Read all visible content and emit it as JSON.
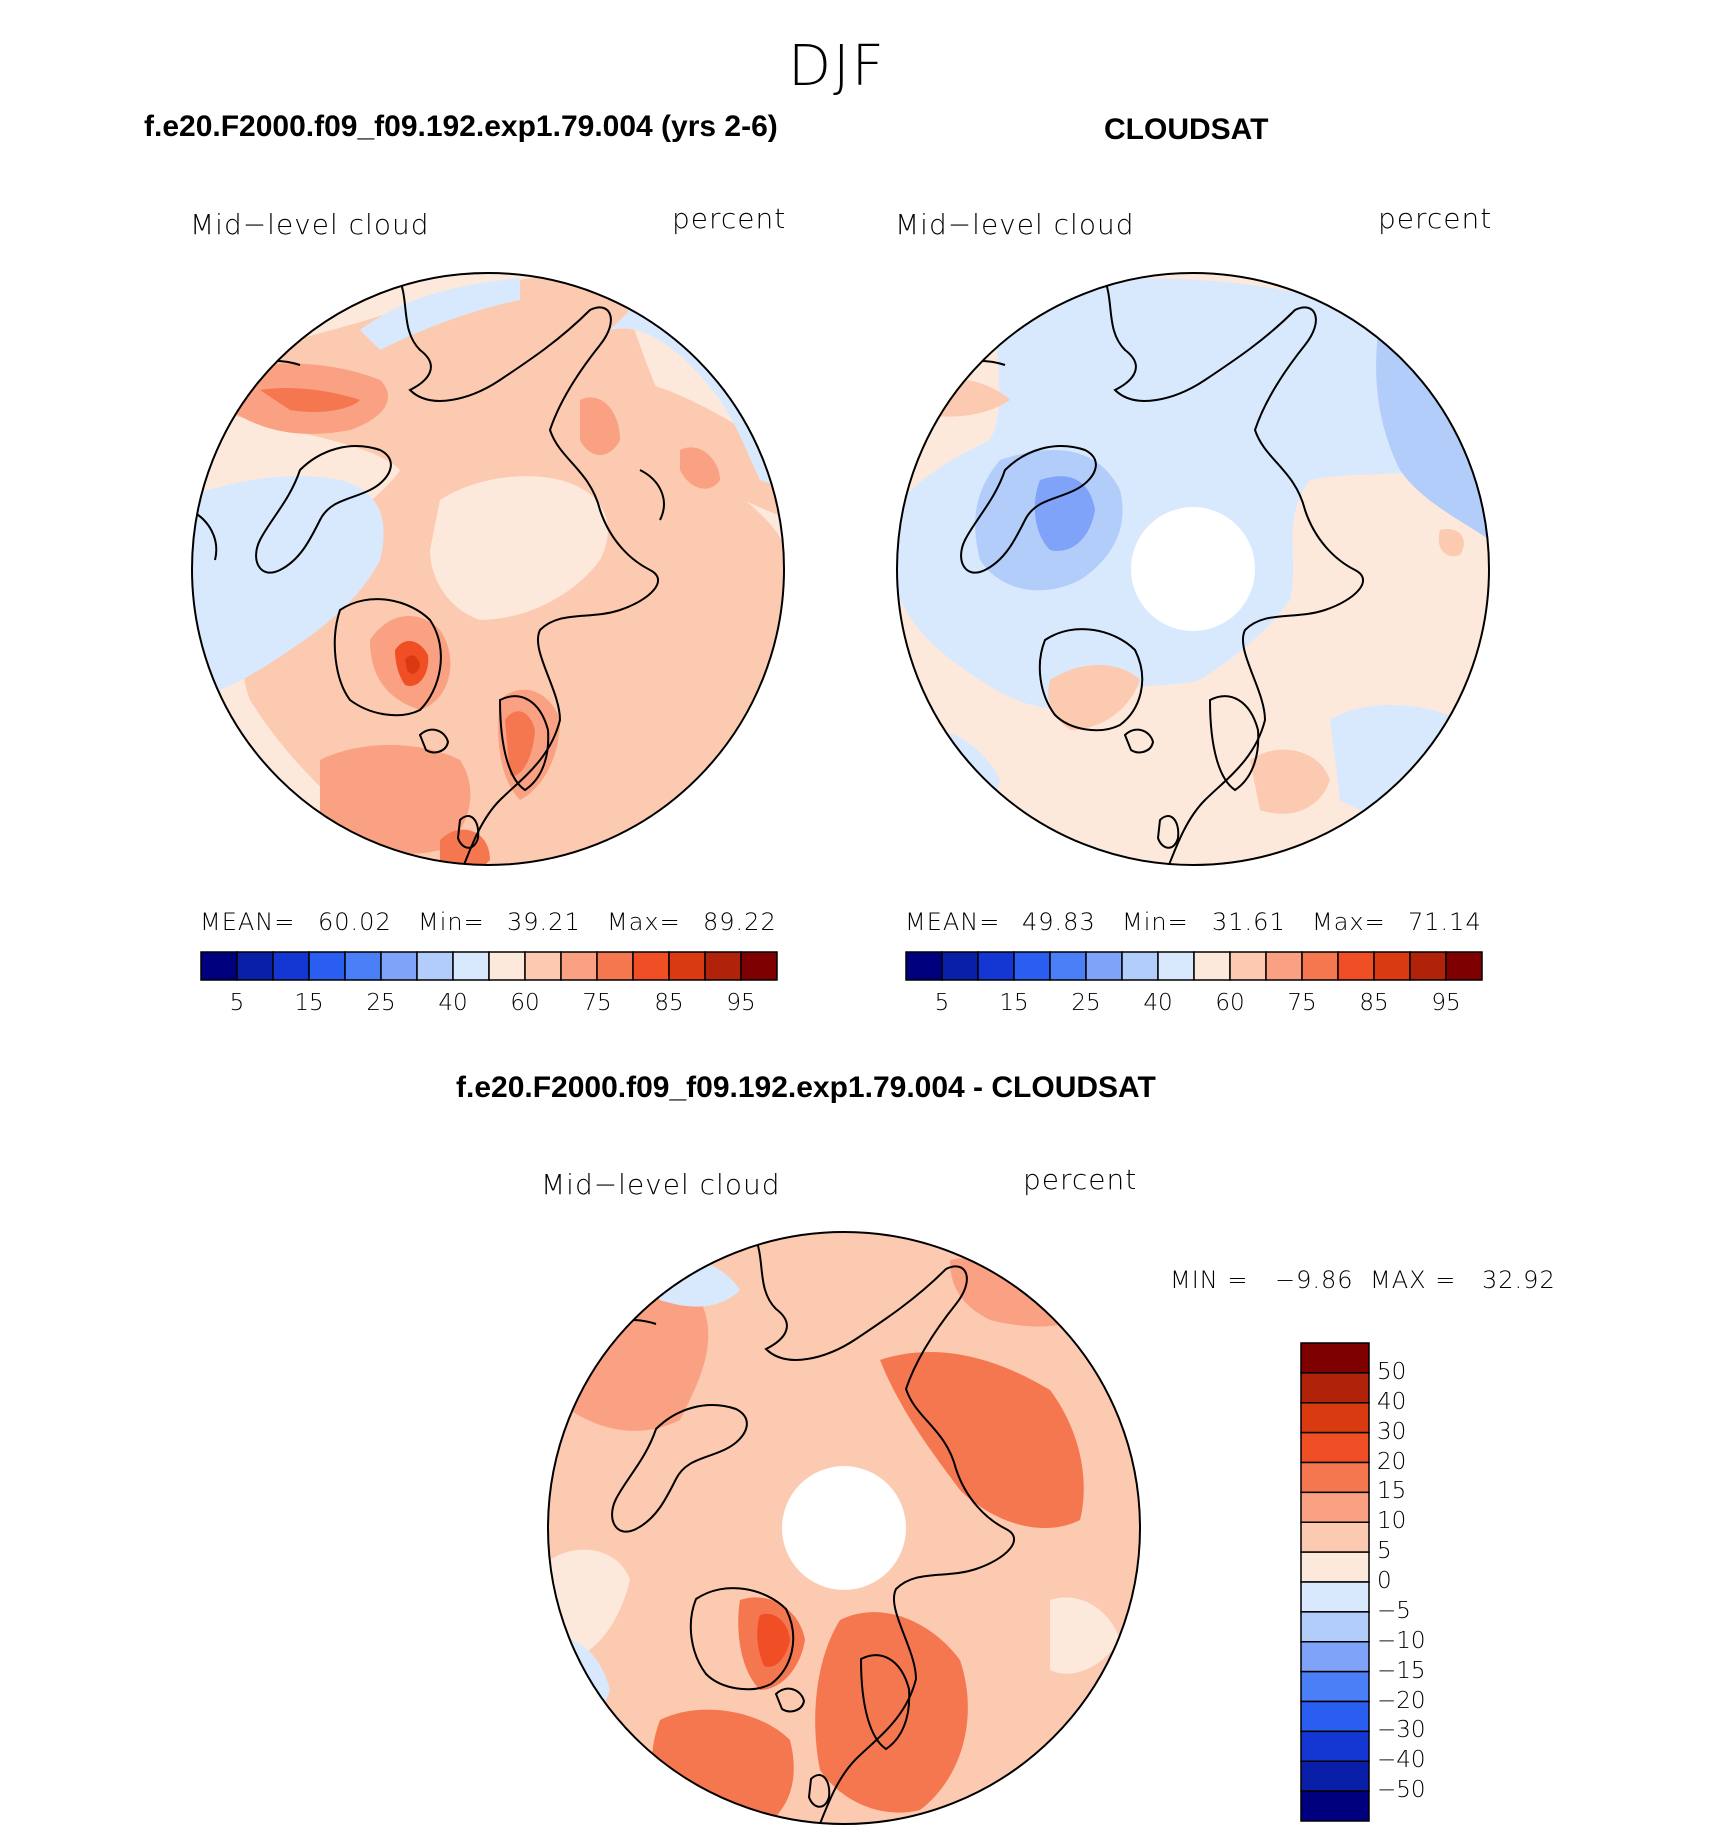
{
  "season": "DJF",
  "panels": [
    {
      "id": "model",
      "title": "f.e20.F2000.f09_f09.192.exp1.79.004 (yrs 2-6)",
      "left_label": "Mid−level cloud",
      "right_label": "percent",
      "stats": {
        "mean_label": "MEAN=",
        "mean": "60.02",
        "min_label": "Min=",
        "min": "39.21",
        "max_label": "Max=",
        "max": "89.22"
      },
      "colorbar_ticks": [
        "5",
        "15",
        "25",
        "40",
        "60",
        "75",
        "85",
        "95"
      ]
    },
    {
      "id": "obs",
      "title": "CLOUDSAT",
      "left_label": "Mid−level cloud",
      "right_label": "percent",
      "stats": {
        "mean_label": "MEAN=",
        "mean": "49.83",
        "min_label": "Min=",
        "min": "31.61",
        "max_label": "Max=",
        "max": "71.14"
      },
      "colorbar_ticks": [
        "5",
        "15",
        "25",
        "40",
        "60",
        "75",
        "85",
        "95"
      ]
    },
    {
      "id": "diff",
      "title": "f.e20.F2000.f09_f09.192.exp1.79.004 - CLOUDSAT",
      "left_label": "Mid−level cloud",
      "right_label": "percent",
      "stats": {
        "min_label": "MIN =",
        "min": "−9.86",
        "max_label": "MAX =",
        "max": "32.92"
      },
      "colorbar_ticks": [
        "50",
        "40",
        "30",
        "20",
        "15",
        "10",
        "5",
        "0",
        "−5",
        "−10",
        "−15",
        "−20",
        "−30",
        "−40",
        "−50"
      ]
    }
  ],
  "colors": {
    "scale": [
      "#00007f",
      "#0a1fa8",
      "#1437d4",
      "#2a5ef0",
      "#4b7ff7",
      "#7ea3f9",
      "#b2cdfa",
      "#d9e9fd",
      "#fde9dc",
      "#fccab0",
      "#f9a182",
      "#f57750",
      "#f04e25",
      "#d93a10",
      "#b0230a",
      "#7f0000"
    ],
    "coast": "#000000"
  }
}
